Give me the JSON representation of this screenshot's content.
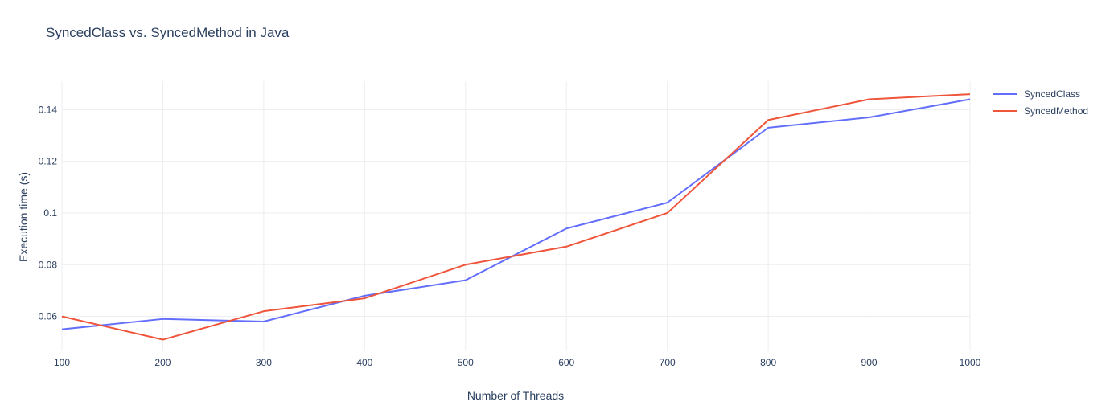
{
  "chart_data": {
    "type": "line",
    "title": "SyncedClass vs. SyncedMethod in Java",
    "xlabel": "Number of Threads",
    "ylabel": "Execution time (s)",
    "x": [
      100,
      200,
      300,
      400,
      500,
      600,
      700,
      800,
      900,
      1000
    ],
    "xlim": [
      100,
      1000
    ],
    "ylim": [
      0.0465,
      0.151
    ],
    "x_ticks": [
      "100",
      "200",
      "300",
      "400",
      "500",
      "600",
      "700",
      "800",
      "900",
      "1000"
    ],
    "y_ticks": [
      {
        "value": 0.06,
        "label": "0.06"
      },
      {
        "value": 0.08,
        "label": "0.08"
      },
      {
        "value": 0.1,
        "label": "0.1"
      },
      {
        "value": 0.12,
        "label": "0.12"
      },
      {
        "value": 0.14,
        "label": "0.14"
      }
    ],
    "grid": true,
    "legend_position": "top-right",
    "series": [
      {
        "name": "SyncedClass",
        "color": "#636efa",
        "values": [
          0.055,
          0.059,
          0.058,
          0.068,
          0.074,
          0.094,
          0.104,
          0.133,
          0.137,
          0.144
        ]
      },
      {
        "name": "SyncedMethod",
        "color": "#ef553b",
        "values": [
          0.06,
          0.051,
          0.062,
          0.067,
          0.08,
          0.087,
          0.1,
          0.136,
          0.144,
          0.146
        ]
      }
    ]
  }
}
